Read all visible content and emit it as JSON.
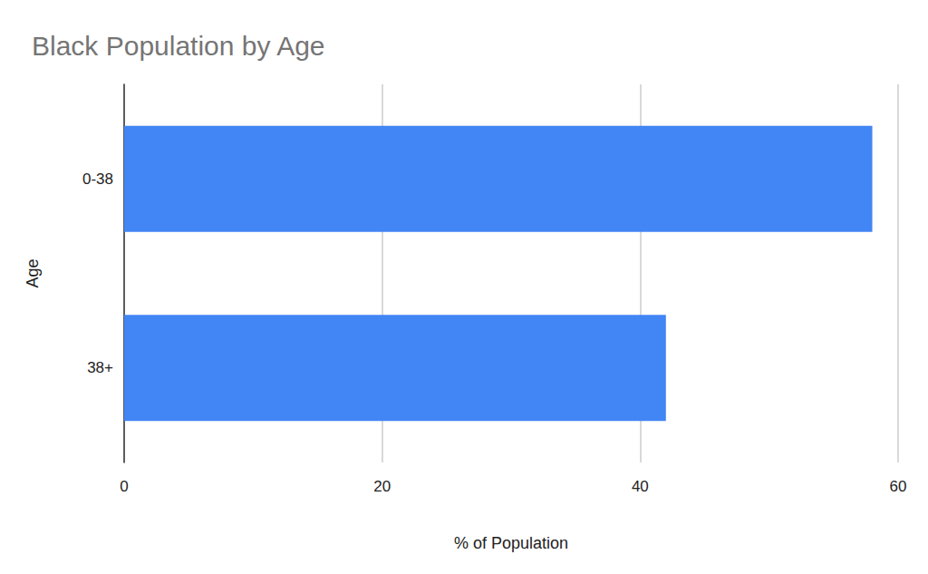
{
  "chart_data": {
    "type": "bar",
    "title": "Black Population by Age",
    "x_label": "% of Population",
    "y_label": "Age",
    "categories": [
      "0-38",
      "38+"
    ],
    "values": [
      58,
      42
    ],
    "color": "#4285f4",
    "orientation": "horizontal",
    "xlim": [
      0,
      60
    ],
    "xticks": [
      0,
      20,
      40,
      60
    ],
    "grid": true
  }
}
